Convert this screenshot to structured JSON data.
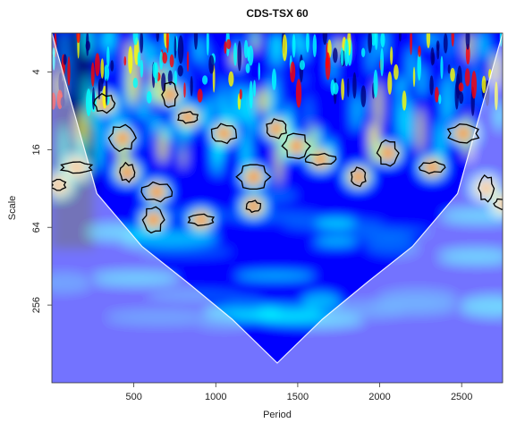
{
  "chart_data": {
    "type": "heatmap",
    "title": "CDS-TSX 60",
    "xlabel": "Period",
    "ylabel": "Scale",
    "xlim": [
      0,
      2750
    ],
    "x_ticks": [
      500,
      1000,
      1500,
      2000,
      2500
    ],
    "x_tick_labels": [
      "500",
      "1000",
      "1500",
      "2000",
      "2500"
    ],
    "y_scale": "log2",
    "ylim": [
      2,
      1024
    ],
    "y_ticks": [
      4,
      16,
      64,
      256
    ],
    "y_tick_labels": [
      "4",
      "16",
      "64",
      "256"
    ],
    "colormap": [
      "#00007f",
      "#0000ff",
      "#0080ff",
      "#00ffff",
      "#ffff00",
      "#ff8000",
      "#ff0000",
      "#7f0000"
    ],
    "background_power": "low (blue) across most of the plane, with higher power (yellow to red) patches concentrated at small scales",
    "cone_of_influence": {
      "x": [
        0,
        275,
        550,
        825,
        1100,
        1375,
        1650,
        1925,
        2200,
        2475,
        2750
      ],
      "scale": [
        2,
        35,
        90,
        170,
        330,
        720,
        330,
        170,
        90,
        35,
        2
      ]
    },
    "significant_regions": [
      {
        "x_center": 40,
        "scale_center": 30
      },
      {
        "x_center": 320,
        "scale_center": 7
      },
      {
        "x_center": 430,
        "scale_center": 13
      },
      {
        "x_center": 150,
        "scale_center": 22
      },
      {
        "x_center": 460,
        "scale_center": 24
      },
      {
        "x_center": 620,
        "scale_center": 56
      },
      {
        "x_center": 910,
        "scale_center": 56
      },
      {
        "x_center": 640,
        "scale_center": 34
      },
      {
        "x_center": 720,
        "scale_center": 6
      },
      {
        "x_center": 830,
        "scale_center": 9
      },
      {
        "x_center": 1050,
        "scale_center": 12
      },
      {
        "x_center": 1230,
        "scale_center": 26
      },
      {
        "x_center": 1230,
        "scale_center": 44
      },
      {
        "x_center": 1370,
        "scale_center": 11
      },
      {
        "x_center": 1490,
        "scale_center": 15
      },
      {
        "x_center": 1640,
        "scale_center": 19
      },
      {
        "x_center": 1870,
        "scale_center": 26
      },
      {
        "x_center": 2050,
        "scale_center": 17
      },
      {
        "x_center": 2320,
        "scale_center": 22
      },
      {
        "x_center": 2510,
        "scale_center": 12
      },
      {
        "x_center": 2650,
        "scale_center": 32
      },
      {
        "x_center": 2760,
        "scale_center": 42
      }
    ],
    "grid": false,
    "legend": "none"
  }
}
